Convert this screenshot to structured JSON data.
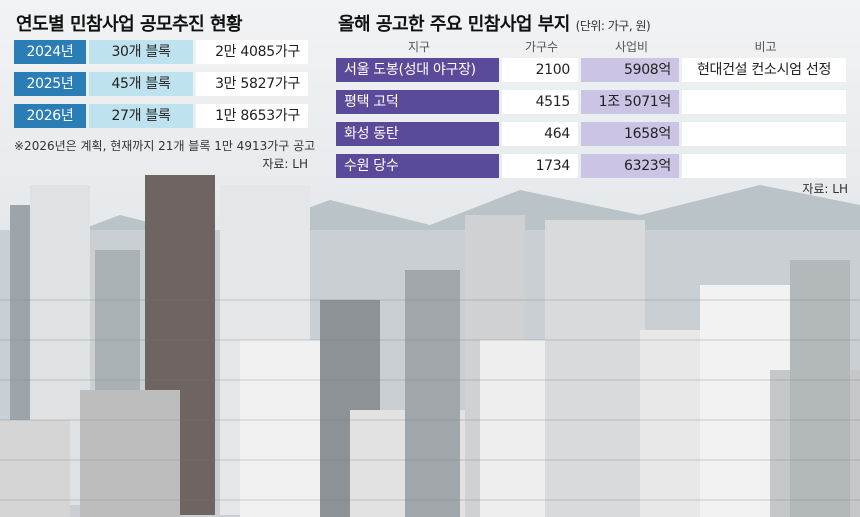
{
  "yearly": {
    "title": "연도별 민참사업 공모추진 현황",
    "rows": [
      [
        "2024년",
        "30개 블록",
        "2만 4085가구"
      ],
      [
        "2025년",
        "45개 블록",
        "3만 5827가구"
      ],
      [
        "2026년",
        "27개 블록",
        "1만 8653가구"
      ]
    ],
    "note": "※2026년은 계획, 현재까지 21개 블록 1만 4913가구 공고",
    "source": "자료: LH"
  },
  "sites": {
    "title": "올해 공고한 주요 민참사업 부지",
    "unit": "(단위: 가구, 원)",
    "headers": [
      "지구",
      "가구수",
      "사업비",
      "비고"
    ],
    "rows": [
      {
        "district": "서울 도봉(성대 야구장)",
        "households": 2100,
        "cost": "5908억",
        "remark": "현대건설 컨소시엄 선정"
      },
      {
        "district": "평택 고덕",
        "households": 4515,
        "cost": "1조 5071억"
      },
      {
        "district": "화성 동탄",
        "households": 464,
        "cost": "1658억"
      },
      {
        "district": "수원 당수",
        "households": 1734,
        "cost": "6323억"
      }
    ],
    "source": "자료: LH"
  }
}
